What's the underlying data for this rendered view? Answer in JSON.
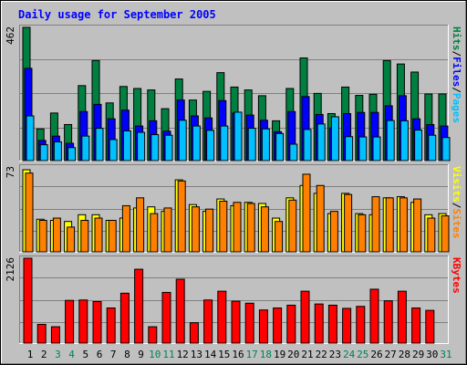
{
  "chart_data": [
    {
      "type": "bar",
      "title": "Daily usage for September 2005",
      "panel": "hits-files-pages",
      "y_tick_label": "462",
      "ylim": [
        0,
        462
      ],
      "right_labels": [
        "Pages",
        "Files",
        "Hits"
      ],
      "x": [
        1,
        2,
        3,
        4,
        5,
        6,
        7,
        8,
        9,
        10,
        11,
        12,
        13,
        14,
        15,
        16,
        17,
        18,
        19,
        20,
        21,
        22,
        23,
        24,
        25,
        26,
        27,
        28,
        29,
        30,
        31
      ],
      "weekend_days": [
        3,
        4,
        10,
        11,
        17,
        18,
        24,
        25,
        31
      ],
      "series": [
        {
          "name": "Hits",
          "color": "#008040",
          "values": [
            462,
            110,
            165,
            125,
            260,
            347,
            200,
            257,
            250,
            245,
            180,
            283,
            210,
            240,
            305,
            255,
            245,
            225,
            138,
            250,
            356,
            233,
            163,
            255,
            226,
            230,
            347,
            335,
            307,
            231,
            231
          ]
        },
        {
          "name": "Files",
          "color": "#0000ff",
          "values": [
            320,
            70,
            85,
            60,
            170,
            195,
            145,
            175,
            120,
            138,
            102,
            210,
            155,
            148,
            208,
            165,
            158,
            140,
            100,
            170,
            222,
            160,
            113,
            163,
            167,
            167,
            190,
            225,
            145,
            125,
            120
          ]
        },
        {
          "name": "Pages",
          "color": "#00c0ff",
          "values": [
            155,
            55,
            65,
            45,
            85,
            112,
            73,
            103,
            98,
            90,
            88,
            140,
            120,
            105,
            120,
            168,
            112,
            110,
            94,
            57,
            108,
            127,
            152,
            83,
            82,
            82,
            139,
            138,
            106,
            88,
            80
          ]
        }
      ]
    },
    {
      "type": "bar",
      "panel": "visits-sites",
      "y_tick_label": "73",
      "ylim": [
        0,
        73
      ],
      "right_labels": [
        "Sites",
        "Visits"
      ],
      "x": [
        1,
        2,
        3,
        4,
        5,
        6,
        7,
        8,
        9,
        10,
        11,
        12,
        13,
        14,
        15,
        16,
        17,
        18,
        19,
        20,
        21,
        22,
        23,
        24,
        25,
        26,
        27,
        28,
        29,
        30,
        31
      ],
      "series": [
        {
          "name": "Visits",
          "color": "#ffff00",
          "values": [
            73,
            29,
            28,
            27,
            33,
            33,
            28,
            30,
            39,
            40,
            36,
            64,
            42,
            36,
            47,
            41,
            44,
            43,
            30,
            48,
            59,
            52,
            34,
            52,
            34,
            33,
            48,
            49,
            44,
            33,
            34
          ]
        },
        {
          "name": "Sites",
          "color": "#ff8000",
          "values": [
            70,
            28,
            30,
            22,
            28,
            30,
            28,
            41,
            48,
            34,
            39,
            63,
            40,
            38,
            45,
            44,
            43,
            40,
            27,
            46,
            69,
            59,
            36,
            51,
            33,
            49,
            48,
            48,
            47,
            30,
            32
          ]
        }
      ]
    },
    {
      "type": "bar",
      "panel": "kbytes",
      "y_tick_label": "2126",
      "ylim": [
        0,
        2126
      ],
      "right_labels": [
        "KBytes"
      ],
      "x_tick_labels": [
        "1",
        "2",
        "3",
        "4",
        "5",
        "6",
        "7",
        "8",
        "9",
        "10",
        "11",
        "12",
        "13",
        "14",
        "15",
        "16",
        "17",
        "18",
        "19",
        "20",
        "21",
        "22",
        "23",
        "24",
        "25",
        "26",
        "27",
        "28",
        "29",
        "30",
        "31"
      ],
      "x": [
        1,
        2,
        3,
        4,
        5,
        6,
        7,
        8,
        9,
        10,
        11,
        12,
        13,
        14,
        15,
        16,
        17,
        18,
        19,
        20,
        21,
        22,
        23,
        24,
        25,
        26,
        27,
        28,
        29,
        30,
        31
      ],
      "series": [
        {
          "name": "KBytes",
          "color": "#ff0000",
          "values": [
            2126,
            470,
            410,
            1070,
            1080,
            1040,
            880,
            1250,
            1850,
            410,
            1270,
            1600,
            510,
            1080,
            1300,
            1050,
            1000,
            830,
            880,
            950,
            1300,
            980,
            950,
            870,
            920,
            1350,
            1060,
            1300,
            880,
            820,
            0
          ]
        }
      ]
    }
  ]
}
